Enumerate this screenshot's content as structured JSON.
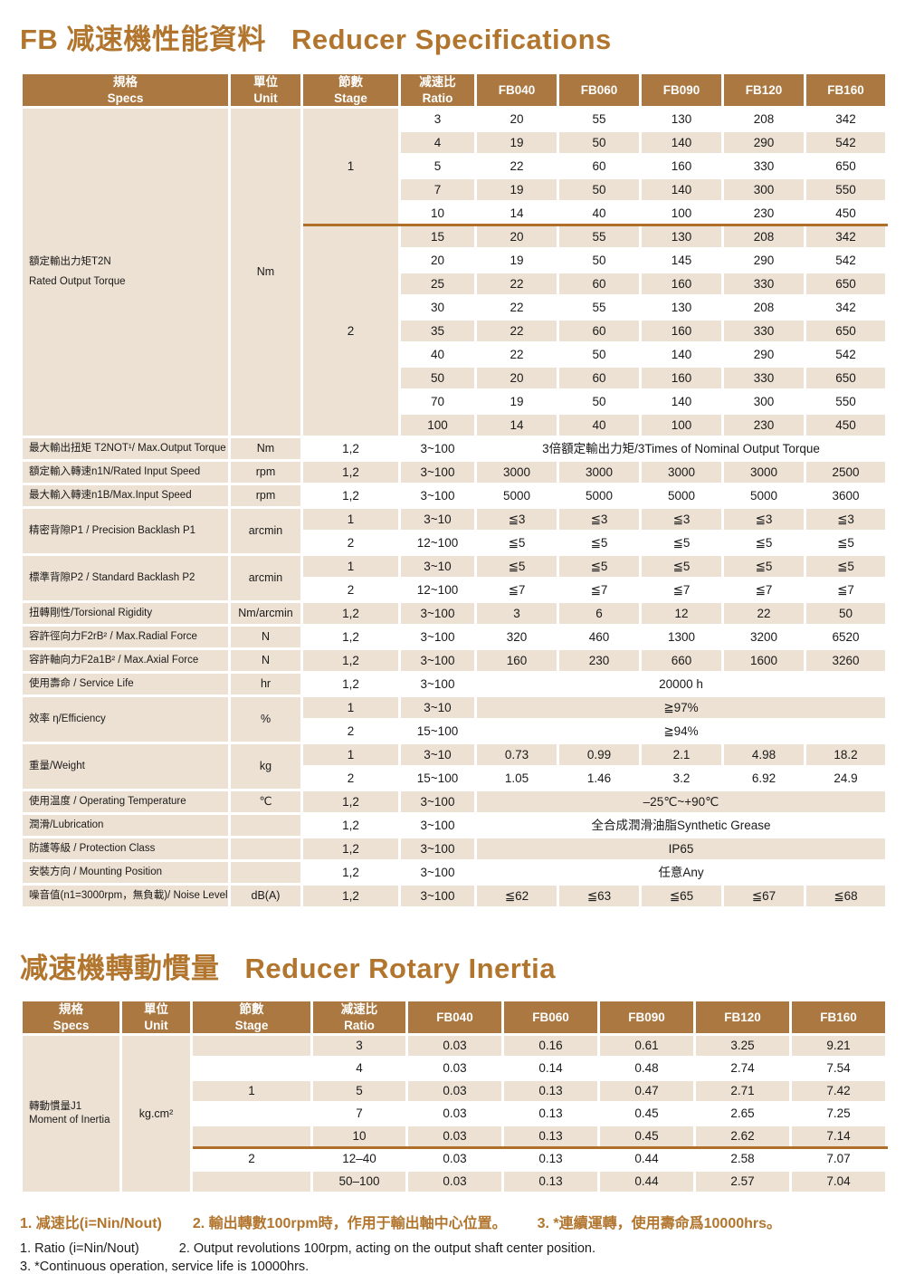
{
  "titles": {
    "spec": {
      "zh": "FB 减速機性能資料",
      "en": "Reducer Specifications"
    },
    "inertia": {
      "zh": "减速機轉動慣量",
      "en": "Reducer Rotary Inertia"
    }
  },
  "colors": {
    "header_brown": "#aa7840",
    "row_beige": "#ede1d3",
    "divider_brown": "#b06f28",
    "title_brown": "#b2752e",
    "header_text": "#ffffff",
    "body_text": "#1a1a1a"
  },
  "table_headers": {
    "specs_zh": "規格",
    "specs_en": "Specs",
    "unit_zh": "單位",
    "unit_en": "Unit",
    "stage_zh": "節數",
    "stage_en": "Stage",
    "ratio_zh": "减速比",
    "ratio_en": "Ratio",
    "models": [
      "FB040",
      "FB060",
      "FB090",
      "FB120",
      "FB160"
    ]
  },
  "spec_table": {
    "torque": {
      "label_zh": "額定輸出力矩T2N",
      "label_en": "Rated Output Torque",
      "unit": "Nm",
      "stage_blocks": [
        {
          "stage": "1",
          "rows": [
            {
              "ratio": "3",
              "values": [
                "20",
                "55",
                "130",
                "208",
                "342"
              ]
            },
            {
              "ratio": "4",
              "values": [
                "19",
                "50",
                "140",
                "290",
                "542"
              ]
            },
            {
              "ratio": "5",
              "values": [
                "22",
                "60",
                "160",
                "330",
                "650"
              ]
            },
            {
              "ratio": "7",
              "values": [
                "19",
                "50",
                "140",
                "300",
                "550"
              ]
            },
            {
              "ratio": "10",
              "values": [
                "14",
                "40",
                "100",
                "230",
                "450"
              ]
            }
          ]
        },
        {
          "stage": "2",
          "rows": [
            {
              "ratio": "15",
              "values": [
                "20",
                "55",
                "130",
                "208",
                "342"
              ]
            },
            {
              "ratio": "20",
              "values": [
                "19",
                "50",
                "145",
                "290",
                "542"
              ]
            },
            {
              "ratio": "25",
              "values": [
                "22",
                "60",
                "160",
                "330",
                "650"
              ]
            },
            {
              "ratio": "30",
              "values": [
                "22",
                "55",
                "130",
                "208",
                "342"
              ]
            },
            {
              "ratio": "35",
              "values": [
                "22",
                "60",
                "160",
                "330",
                "650"
              ]
            },
            {
              "ratio": "40",
              "values": [
                "22",
                "50",
                "140",
                "290",
                "542"
              ]
            },
            {
              "ratio": "50",
              "values": [
                "20",
                "60",
                "160",
                "330",
                "650"
              ]
            },
            {
              "ratio": "70",
              "values": [
                "19",
                "50",
                "140",
                "300",
                "550"
              ]
            },
            {
              "ratio": "100",
              "values": [
                "14",
                "40",
                "100",
                "230",
                "450"
              ]
            }
          ]
        }
      ]
    },
    "groups": [
      {
        "label": "最大輸出扭矩 T2NOT¹/ Max.Output Torque",
        "unit": "Nm",
        "rows": [
          {
            "stage": "1,2",
            "ratio": "3~100",
            "span": "3倍額定輸出力矩/3Times of Nominal Output Torque"
          }
        ]
      },
      {
        "label": "額定輸入轉速n1N/Rated Input Speed",
        "unit": "rpm",
        "rows": [
          {
            "stage": "1,2",
            "ratio": "3~100",
            "values": [
              "3000",
              "3000",
              "3000",
              "3000",
              "2500"
            ]
          }
        ]
      },
      {
        "label": "最大輸入轉速n1B/Max.Input Speed",
        "unit": "rpm",
        "rows": [
          {
            "stage": "1,2",
            "ratio": "3~100",
            "values": [
              "5000",
              "5000",
              "5000",
              "5000",
              "3600"
            ]
          }
        ]
      },
      {
        "label": "精密背隙P1 / Precision Backlash P1",
        "unit": "arcmin",
        "rows": [
          {
            "stage": "1",
            "ratio": "3~10",
            "values": [
              "≦3",
              "≦3",
              "≦3",
              "≦3",
              "≦3"
            ]
          },
          {
            "stage": "2",
            "ratio": "12~100",
            "values": [
              "≦5",
              "≦5",
              "≦5",
              "≦5",
              "≦5"
            ]
          }
        ]
      },
      {
        "label": "標準背隙P2 / Standard Backlash P2",
        "unit": "arcmin",
        "rows": [
          {
            "stage": "1",
            "ratio": "3~10",
            "values": [
              "≦5",
              "≦5",
              "≦5",
              "≦5",
              "≦5"
            ]
          },
          {
            "stage": "2",
            "ratio": "12~100",
            "values": [
              "≦7",
              "≦7",
              "≦7",
              "≦7",
              "≦7"
            ]
          }
        ]
      },
      {
        "label": "扭轉剛性/Torsional Rigidity",
        "unit": "Nm/arcmin",
        "rows": [
          {
            "stage": "1,2",
            "ratio": "3~100",
            "values": [
              "3",
              "6",
              "12",
              "22",
              "50"
            ]
          }
        ]
      },
      {
        "label": "容許徑向力F2rB² / Max.Radial Force",
        "unit": "N",
        "rows": [
          {
            "stage": "1,2",
            "ratio": "3~100",
            "values": [
              "320",
              "460",
              "1300",
              "3200",
              "6520"
            ]
          }
        ]
      },
      {
        "label": "容許軸向力F2a1B² / Max.Axial Force",
        "unit": "N",
        "rows": [
          {
            "stage": "1,2",
            "ratio": "3~100",
            "values": [
              "160",
              "230",
              "660",
              "1600",
              "3260"
            ]
          }
        ]
      },
      {
        "label": "使用壽命 / Service Life",
        "unit": "hr",
        "rows": [
          {
            "stage": "1,2",
            "ratio": "3~100",
            "span": "20000 h"
          }
        ]
      },
      {
        "label": "效率 η/Efficiency",
        "unit": "%",
        "rows": [
          {
            "stage": "1",
            "ratio": "3~10",
            "span": "≧97%"
          },
          {
            "stage": "2",
            "ratio": "15~100",
            "span": "≧94%"
          }
        ]
      },
      {
        "label": "重量/Weight",
        "unit": "kg",
        "rows": [
          {
            "stage": "1",
            "ratio": "3~10",
            "values": [
              "0.73",
              "0.99",
              "2.1",
              "4.98",
              "18.2"
            ]
          },
          {
            "stage": "2",
            "ratio": "15~100",
            "values": [
              "1.05",
              "1.46",
              "3.2",
              "6.92",
              "24.9"
            ]
          }
        ]
      },
      {
        "label": "使用温度 / Operating Temperature",
        "unit": "℃",
        "rows": [
          {
            "stage": "1,2",
            "ratio": "3~100",
            "span": "–25℃~+90℃"
          }
        ]
      },
      {
        "label": "潤滑/Lubrication",
        "unit": "",
        "rows": [
          {
            "stage": "1,2",
            "ratio": "3~100",
            "span": "全合成潤滑油脂Synthetic Grease"
          }
        ]
      },
      {
        "label": "防護等級 / Protection Class",
        "unit": "",
        "rows": [
          {
            "stage": "1,2",
            "ratio": "3~100",
            "span": "IP65"
          }
        ]
      },
      {
        "label": "安裝方向 / Mounting Position",
        "unit": "",
        "rows": [
          {
            "stage": "1,2",
            "ratio": "3~100",
            "span": "任意Any"
          }
        ]
      },
      {
        "label": "噪音值(n1=3000rpm，無負載)/ Noise Level",
        "unit": "dB(A)",
        "rows": [
          {
            "stage": "1,2",
            "ratio": "3~100",
            "values": [
              "≦62",
              "≦63",
              "≦65",
              "≦67",
              "≦68"
            ]
          }
        ]
      }
    ]
  },
  "inertia_table": {
    "label_zh": "轉動慣量J1",
    "label_en": "Moment of Inertia",
    "unit": "kg.cm²",
    "rows": [
      {
        "stage": "",
        "ratio": "3",
        "values": [
          "0.03",
          "0.16",
          "0.61",
          "3.25",
          "9.21"
        ]
      },
      {
        "stage": "",
        "ratio": "4",
        "values": [
          "0.03",
          "0.14",
          "0.48",
          "2.74",
          "7.54"
        ]
      },
      {
        "stage": "1",
        "ratio": "5",
        "values": [
          "0.03",
          "0.13",
          "0.47",
          "2.71",
          "7.42"
        ]
      },
      {
        "stage": "",
        "ratio": "7",
        "values": [
          "0.03",
          "0.13",
          "0.45",
          "2.65",
          "7.25"
        ]
      },
      {
        "stage": "",
        "ratio": "10",
        "values": [
          "0.03",
          "0.13",
          "0.45",
          "2.62",
          "7.14"
        ]
      },
      {
        "stage": "2",
        "ratio": "12–40",
        "values": [
          "0.03",
          "0.13",
          "0.44",
          "2.58",
          "7.07"
        ],
        "divider": true
      },
      {
        "stage": "",
        "ratio": "50–100",
        "values": [
          "0.03",
          "0.13",
          "0.44",
          "2.57",
          "7.04"
        ]
      }
    ]
  },
  "footnotes": {
    "zh": [
      "1. 减速比(i=Nin/Nout)",
      "2. 輸出轉數100rpm時，作用于輸出軸中心位置。",
      "3. *連續運轉，使用壽命爲10000hrs。"
    ],
    "en": [
      "1. Ratio (i=Nin/Nout)",
      "2. Output revolutions 100rpm, acting on the output shaft center position.",
      "3. *Continuous operation, service life is 10000hrs."
    ]
  }
}
